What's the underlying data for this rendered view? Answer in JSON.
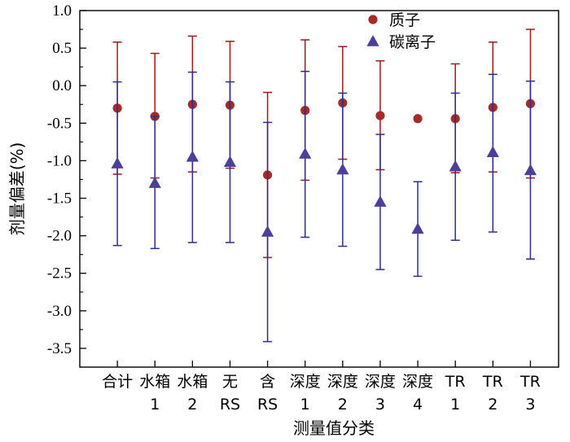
{
  "chart_data": {
    "type": "scatter",
    "xlabel": "测量值分类",
    "ylabel": "剂量偏差(%)",
    "ylim": [
      -3.75,
      1.0
    ],
    "yticks": [
      1.0,
      0.5,
      0.0,
      -0.5,
      -1.0,
      -1.5,
      -2.0,
      -2.5,
      -3.0,
      -3.5
    ],
    "ytick_labels": [
      "1.0",
      "0.5",
      "0.0",
      "-0.5",
      "-1.0",
      "-1.5",
      "-2.0",
      "-2.5",
      "-3.0",
      "-3.5"
    ],
    "categories": [
      [
        "合计"
      ],
      [
        "水箱",
        "1"
      ],
      [
        "水箱",
        "2"
      ],
      [
        "无",
        "RS"
      ],
      [
        "含",
        "RS"
      ],
      [
        "深度",
        "1"
      ],
      [
        "深度",
        "2"
      ],
      [
        "深度",
        "3"
      ],
      [
        "深度",
        "4"
      ],
      [
        "TR",
        "1"
      ],
      [
        "TR",
        "2"
      ],
      [
        "TR",
        "3"
      ]
    ],
    "legend_position": "top-right",
    "grid": false,
    "series": [
      {
        "name": "质子",
        "marker": "circle",
        "color": "#a52a2a",
        "error_color": "#9b1b1b",
        "values": [
          -0.3,
          -0.41,
          -0.25,
          -0.26,
          -1.19,
          -0.33,
          -0.23,
          -0.4,
          -0.44,
          -0.44,
          -0.29,
          -0.24
        ],
        "upper": [
          0.58,
          0.43,
          0.66,
          0.59,
          -0.09,
          0.61,
          0.52,
          0.33,
          null,
          0.29,
          0.58,
          0.75
        ],
        "lower": [
          -1.18,
          -1.23,
          -1.15,
          -1.1,
          -2.29,
          -1.26,
          -0.98,
          -1.12,
          null,
          -1.16,
          -1.15,
          -1.23
        ]
      },
      {
        "name": "碳离子",
        "marker": "triangle",
        "color": "#4b3f9a",
        "error_color": "#2e2d8f",
        "values": [
          -1.04,
          -1.3,
          -0.95,
          -1.02,
          -1.95,
          -0.91,
          -1.12,
          -1.55,
          -1.91,
          -1.08,
          -0.89,
          -1.13
        ],
        "upper": [
          0.05,
          -0.41,
          0.18,
          0.05,
          -0.49,
          0.19,
          -0.1,
          -0.65,
          -1.28,
          -0.1,
          0.15,
          0.06
        ],
        "lower": [
          -2.13,
          -2.17,
          -2.09,
          -2.09,
          -3.41,
          -2.02,
          -2.14,
          -2.45,
          -2.54,
          -2.06,
          -1.95,
          -2.31
        ]
      }
    ]
  }
}
